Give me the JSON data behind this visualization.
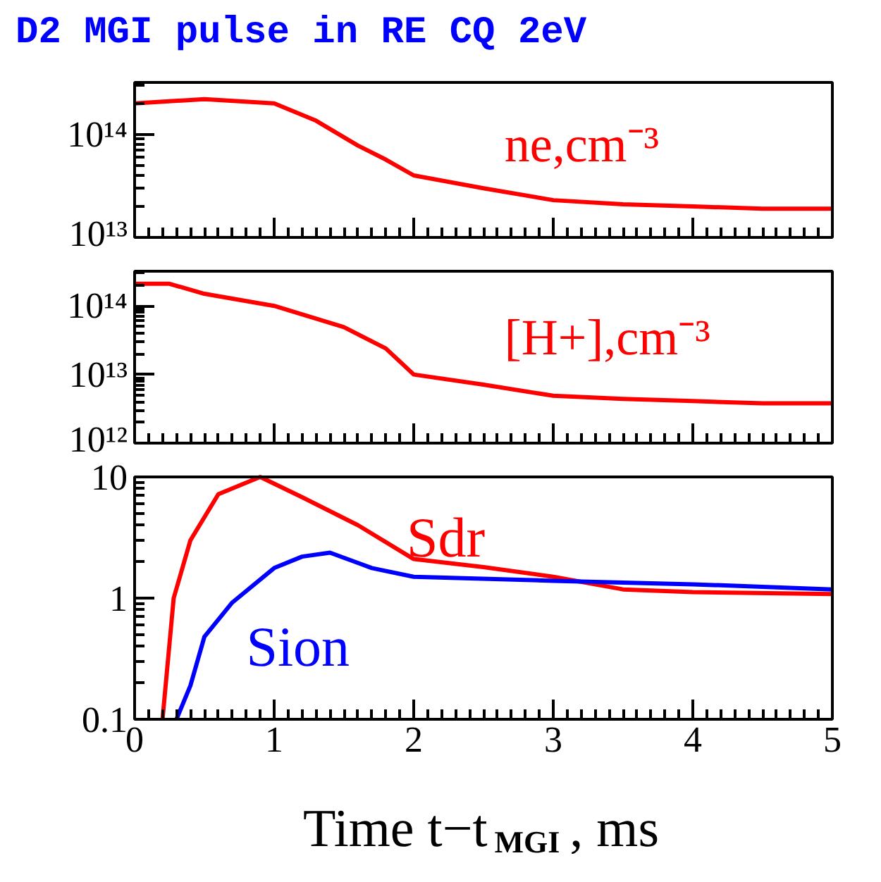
{
  "chart_data": [
    {
      "type": "line",
      "title": "D2 MGI pulse in RE CQ 2eV",
      "log": "y",
      "grid": false,
      "tick_labels": "y",
      "xlim": [
        0,
        5
      ],
      "xticks": [
        0,
        1,
        2,
        3,
        4,
        5
      ],
      "ylim": [
        10000000000000.0,
        320000000000000.0
      ],
      "yticks": [
        {
          "value": 10000000000000.0,
          "label": "10¹³"
        },
        {
          "value": 100000000000000.0,
          "label": "10¹⁴"
        }
      ],
      "x": [
        0,
        0.5,
        1,
        1.3,
        1.6,
        1.8,
        2,
        2.5,
        3,
        3.5,
        4,
        4.5,
        5
      ],
      "series": [
        {
          "name": "ne,cm⁻³",
          "color": "#ff0000",
          "values": [
            200000000000000.0,
            220000000000000.0,
            200000000000000.0,
            136000000000000.0,
            78000000000000.0,
            57000000000000.0,
            40000000000000.0,
            30000000000000.0,
            23000000000000.0,
            21000000000000.0,
            20000000000000.0,
            19000000000000.0,
            19000000000000.0
          ]
        }
      ]
    },
    {
      "type": "line",
      "log": "y",
      "grid": false,
      "tick_labels": "y",
      "xlim": [
        0,
        5
      ],
      "xticks": [
        0,
        1,
        2,
        3,
        4,
        5
      ],
      "ylim": [
        1000000000000.0,
        320000000000000.0
      ],
      "yticks": [
        {
          "value": 1000000000000.0,
          "label": "10¹²"
        },
        {
          "value": 10000000000000.0,
          "label": "10¹³"
        },
        {
          "value": 100000000000000.0,
          "label": "10¹⁴"
        }
      ],
      "x": [
        0,
        0.25,
        0.5,
        1,
        1.5,
        1.8,
        2,
        2.5,
        3,
        3.5,
        4,
        4.5,
        5
      ],
      "series": [
        {
          "name": "[H+],cm⁻³",
          "color": "#ff0000",
          "values": [
            210000000000000.0,
            210000000000000.0,
            150000000000000.0,
            100000000000000.0,
            49000000000000.0,
            24000000000000.0,
            10000000000000.0,
            7100000000000.0,
            4900000000000.0,
            4400000000000.0,
            4100000000000.0,
            3800000000000.0,
            3800000000000.0
          ]
        }
      ]
    },
    {
      "type": "line",
      "log": "y",
      "grid": false,
      "xlabel": "Time t−t$_{MGI}$, ms",
      "xlim": [
        0,
        5
      ],
      "xticks": [
        0,
        1,
        2,
        3,
        4,
        5
      ],
      "ylim": [
        0.1,
        10
      ],
      "yticks": [
        0.1,
        1,
        10
      ],
      "series": [
        {
          "name": "Sdr",
          "color": "#ff0000",
          "x": [
            0.2,
            0.28,
            0.4,
            0.6,
            0.9,
            1.2,
            1.6,
            2,
            2.5,
            3,
            3.5,
            4,
            5
          ],
          "values": [
            0.1,
            1.0,
            3.0,
            7.2,
            10,
            6.8,
            4.0,
            2.1,
            1.8,
            1.5,
            1.18,
            1.12,
            1.08
          ]
        },
        {
          "name": "Sion",
          "color": "#0000ff",
          "x": [
            0.3,
            0.4,
            0.5,
            0.7,
            1,
            1.2,
            1.4,
            1.7,
            2,
            3,
            4,
            5
          ],
          "values": [
            0.1,
            0.19,
            0.48,
            0.92,
            1.77,
            2.2,
            2.37,
            1.77,
            1.5,
            1.39,
            1.3,
            1.18
          ]
        }
      ]
    }
  ]
}
